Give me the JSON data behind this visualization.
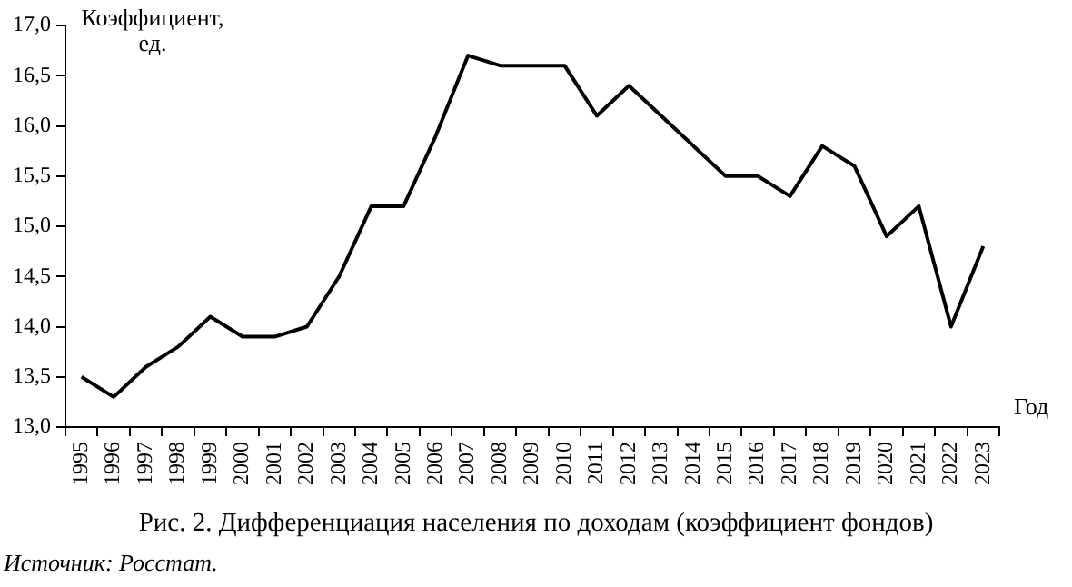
{
  "chart_data": {
    "type": "line",
    "title": "Рис. 2. Дифференциация населения по доходам (коэффициент фондов)",
    "xlabel": "Год",
    "ylabel": "Коэффициент,\nед.",
    "annotations": [
      "Источник: Росстат."
    ],
    "categories": [
      "1995",
      "1996",
      "1997",
      "1998",
      "1999",
      "2000",
      "2001",
      "2002",
      "2003",
      "2004",
      "2005",
      "2006",
      "2007",
      "2008",
      "2009",
      "2010",
      "2011",
      "2012",
      "2013",
      "2014",
      "2015",
      "2016",
      "2017",
      "2018",
      "2019",
      "2020",
      "2021",
      "2022",
      "2023"
    ],
    "series": [
      {
        "color": "#000000",
        "values": [
          13.5,
          13.3,
          13.6,
          13.8,
          14.1,
          13.9,
          13.9,
          14.0,
          14.5,
          15.2,
          15.2,
          15.9,
          16.7,
          16.6,
          16.6,
          16.6,
          16.1,
          16.4,
          16.1,
          15.8,
          15.5,
          15.5,
          15.3,
          15.8,
          15.6,
          14.9,
          15.2,
          14.0,
          14.8
        ]
      }
    ],
    "ylim": [
      13,
      17
    ],
    "yticks": [
      {
        "value": 13,
        "label": "13,0"
      },
      {
        "value": 13.5,
        "label": "13,5"
      },
      {
        "value": 14,
        "label": "14,0"
      },
      {
        "value": 14.5,
        "label": "14,5"
      },
      {
        "value": 15,
        "label": "15,0"
      },
      {
        "value": 15.5,
        "label": "15,5"
      },
      {
        "value": 16,
        "label": "16,0"
      },
      {
        "value": 16.5,
        "label": "16,5"
      },
      {
        "value": 17,
        "label": "17,0"
      }
    ],
    "grid": false,
    "legend": false,
    "marker": "none",
    "line_style": "solid"
  }
}
